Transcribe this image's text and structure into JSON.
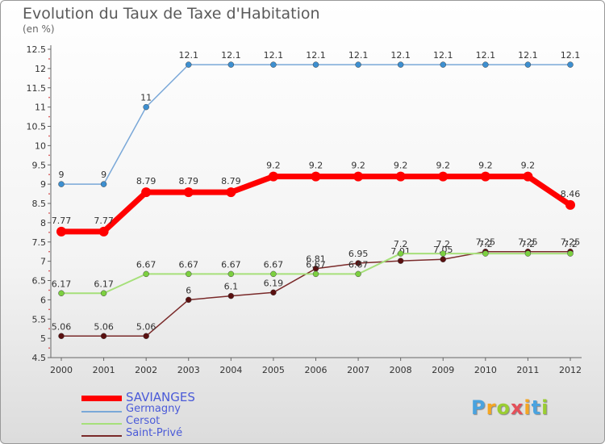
{
  "title": "Evolution du Taux de Taxe d'Habitation",
  "subtitle": "(en %)",
  "brand": "Proxiti",
  "brand_colors": [
    "#4aa3df",
    "#f5a623",
    "#9acd32",
    "#e4505a",
    "#f5a623",
    "#4aa3df",
    "#9acd32"
  ],
  "chart_data": {
    "type": "line",
    "title": "Evolution du Taux de Taxe d'Habitation",
    "ylabel": "(en %)",
    "xlabel": "",
    "categories": [
      "2000",
      "2001",
      "2002",
      "2003",
      "2004",
      "2005",
      "2006",
      "2007",
      "2008",
      "2009",
      "2010",
      "2011",
      "2012"
    ],
    "ylim": [
      4.5,
      12.5
    ],
    "yticks": [
      "4.5",
      "5",
      "5.5",
      "6",
      "6.5",
      "7",
      "7.5",
      "8",
      "8.5",
      "9",
      "9.5",
      "10",
      "10.5",
      "11",
      "11.5",
      "12",
      "12.5"
    ],
    "grid": false,
    "legend_position": "bottom-left",
    "series": [
      {
        "name": "SAVIANGES",
        "color": "#ff0000",
        "line_width": 7,
        "marker_radius": 6,
        "marker_fill": "#ff0000",
        "values": [
          7.77,
          7.77,
          8.79,
          8.79,
          8.79,
          9.2,
          9.2,
          9.2,
          9.2,
          9.2,
          9.2,
          9.2,
          8.46
        ],
        "labels": [
          "7.77",
          "7.77",
          "8.79",
          "8.79",
          "8.79",
          "9.2",
          "9.2",
          "9.2",
          "9.2",
          "9.2",
          "9.2",
          "9.2",
          "8.46"
        ]
      },
      {
        "name": "Germagny",
        "color": "#7aa8d8",
        "line_width": 1.5,
        "marker_radius": 3.5,
        "marker_fill": "#3d8fd0",
        "values": [
          9,
          9,
          11,
          12.1,
          12.1,
          12.1,
          12.1,
          12.1,
          12.1,
          12.1,
          12.1,
          12.1,
          12.1
        ],
        "labels": [
          "9",
          "9",
          "11",
          "12.1",
          "12.1",
          "12.1",
          "12.1",
          "12.1",
          "12.1",
          "12.1",
          "12.1",
          "12.1",
          "12.1"
        ]
      },
      {
        "name": "Cersot",
        "color": "#a6e07a",
        "line_width": 2,
        "marker_radius": 3.5,
        "marker_fill": "#7cd040",
        "values": [
          6.17,
          6.17,
          6.67,
          6.67,
          6.67,
          6.67,
          6.67,
          6.67,
          7.2,
          7.2,
          7.2,
          7.2,
          7.2
        ],
        "labels": [
          "6.17",
          "6.17",
          "6.67",
          "6.67",
          "6.67",
          "6.67",
          "6.67",
          "6.67",
          "7.2",
          "7.2",
          "7.2",
          "7.2",
          "7.2"
        ]
      },
      {
        "name": "Saint-Privé",
        "color": "#7a2a2a",
        "line_width": 1.5,
        "marker_radius": 3.5,
        "marker_fill": "#5a1010",
        "values": [
          5.06,
          5.06,
          5.06,
          6,
          6.1,
          6.19,
          6.81,
          6.95,
          7.01,
          7.05,
          7.25,
          7.25,
          7.25
        ],
        "labels": [
          "5.06",
          "5.06",
          "5.06",
          "6",
          "6.1",
          "6.19",
          "6.81",
          "6.95",
          "7.01",
          "7.05",
          "7.25",
          "7.25",
          "7.25"
        ]
      }
    ]
  }
}
